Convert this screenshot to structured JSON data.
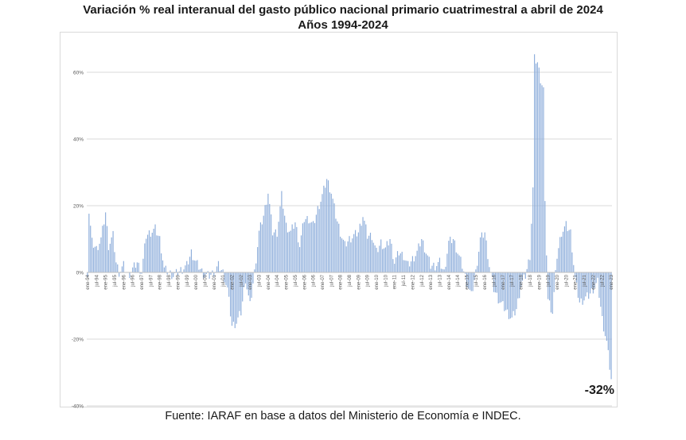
{
  "title": "Variación %  real interanual del gasto público nacional primario cuatrimestral a abril de 2024",
  "subtitle": "Años 1994-2024",
  "source": "Fuente: IARAF en base a datos del Ministerio de Economía e INDEC.",
  "annotation": "-32%",
  "chart_data": {
    "type": "bar",
    "title": "Variación %  real interanual del gasto público nacional primario cuatrimestral a abril de 2024",
    "subtitle": "Años 1994-2024",
    "xlabel": "",
    "ylabel": "",
    "ylim": [
      -40,
      70
    ],
    "yticks": [
      -40,
      -20,
      0,
      20,
      40,
      60
    ],
    "ytick_labels": [
      "-40%",
      "-20%",
      "0%",
      "20%",
      "40%",
      "60%"
    ],
    "grid": true,
    "bar_color": "#8eaedb",
    "annotation": "-32%",
    "xtick_labels": [
      "ene-94",
      "jul-94",
      "ene-95",
      "jul-95",
      "ene-96",
      "jul-96",
      "ene-97",
      "jul-97",
      "ene-98",
      "jul-98",
      "ene-99",
      "jul-99",
      "ene-00",
      "jul-00",
      "ene-01",
      "jul-01",
      "ene-02",
      "jul-02",
      "ene-03",
      "jul-03",
      "ene-04",
      "jul-04",
      "ene-05",
      "jul-05",
      "ene-06",
      "jul-06",
      "ene-07",
      "jul-07",
      "ene-08",
      "jul-08",
      "ene-09",
      "jul-09",
      "ene-10",
      "jul-10",
      "ene-11",
      "jul-11",
      "ene-12",
      "jul-12",
      "ene-13",
      "jul-13",
      "ene-14",
      "jul-14",
      "ene-15",
      "jul-15",
      "ene-16",
      "jul-16",
      "ene-17",
      "jul-17",
      "ene-18",
      "jul-18",
      "ene-19",
      "jul-19",
      "ene-20",
      "jul-20",
      "ene-21",
      "jul-21",
      "ene-22",
      "jul-22",
      "ene-23",
      "jul-23",
      "ene-24"
    ],
    "anchors": [
      [
        0,
        0
      ],
      [
        1,
        18
      ],
      [
        3,
        9
      ],
      [
        6,
        7
      ],
      [
        9,
        10
      ],
      [
        12,
        18
      ],
      [
        14,
        8
      ],
      [
        17,
        11
      ],
      [
        19,
        3
      ],
      [
        21,
        0
      ],
      [
        24,
        2
      ],
      [
        27,
        -1
      ],
      [
        30,
        1
      ],
      [
        33,
        3
      ],
      [
        36,
        0
      ],
      [
        39,
        11
      ],
      [
        42,
        12
      ],
      [
        45,
        13
      ],
      [
        48,
        10
      ],
      [
        51,
        1
      ],
      [
        54,
        0
      ],
      [
        57,
        -1
      ],
      [
        60,
        0
      ],
      [
        63,
        1
      ],
      [
        66,
        2
      ],
      [
        69,
        6
      ],
      [
        72,
        3
      ],
      [
        75,
        1
      ],
      [
        78,
        -1
      ],
      [
        81,
        -1
      ],
      [
        84,
        0
      ],
      [
        87,
        2
      ],
      [
        90,
        0
      ],
      [
        93,
        -5
      ],
      [
        96,
        -16
      ],
      [
        99,
        -15
      ],
      [
        102,
        -12
      ],
      [
        105,
        -2
      ],
      [
        108,
        -10
      ],
      [
        111,
        0
      ],
      [
        114,
        12
      ],
      [
        117,
        17
      ],
      [
        120,
        24
      ],
      [
        123,
        12
      ],
      [
        126,
        12
      ],
      [
        129,
        23
      ],
      [
        132,
        14
      ],
      [
        135,
        12
      ],
      [
        138,
        15
      ],
      [
        141,
        8
      ],
      [
        144,
        16
      ],
      [
        147,
        16
      ],
      [
        150,
        14
      ],
      [
        153,
        19
      ],
      [
        156,
        23
      ],
      [
        159,
        28
      ],
      [
        162,
        24
      ],
      [
        165,
        17
      ],
      [
        168,
        12
      ],
      [
        171,
        8
      ],
      [
        174,
        10
      ],
      [
        177,
        11
      ],
      [
        180,
        12
      ],
      [
        183,
        17
      ],
      [
        186,
        11
      ],
      [
        189,
        11
      ],
      [
        192,
        6
      ],
      [
        195,
        9
      ],
      [
        198,
        7
      ],
      [
        201,
        10
      ],
      [
        204,
        3
      ],
      [
        207,
        6
      ],
      [
        210,
        5
      ],
      [
        213,
        2
      ],
      [
        216,
        4
      ],
      [
        219,
        6
      ],
      [
        222,
        10
      ],
      [
        225,
        6
      ],
      [
        228,
        2
      ],
      [
        231,
        2
      ],
      [
        234,
        3
      ],
      [
        237,
        0
      ],
      [
        240,
        9
      ],
      [
        243,
        10
      ],
      [
        246,
        6
      ],
      [
        249,
        2
      ],
      [
        252,
        -3
      ],
      [
        255,
        -7
      ],
      [
        258,
        0
      ],
      [
        261,
        10
      ],
      [
        264,
        12
      ],
      [
        267,
        2
      ],
      [
        270,
        -5
      ],
      [
        273,
        -8
      ],
      [
        276,
        -10
      ],
      [
        279,
        -12
      ],
      [
        282,
        -14
      ],
      [
        285,
        -11
      ],
      [
        288,
        -4
      ],
      [
        291,
        -1
      ],
      [
        294,
        5
      ],
      [
        296,
        25
      ],
      [
        297,
        64
      ],
      [
        299,
        63
      ],
      [
        301,
        58
      ],
      [
        303,
        55
      ],
      [
        304,
        20
      ],
      [
        306,
        -8
      ],
      [
        309,
        -12
      ],
      [
        312,
        5
      ],
      [
        315,
        12
      ],
      [
        318,
        14
      ],
      [
        321,
        12
      ],
      [
        324,
        -2
      ],
      [
        327,
        -9
      ],
      [
        330,
        -8
      ],
      [
        333,
        -7
      ],
      [
        336,
        -5
      ],
      [
        339,
        -3
      ],
      [
        342,
        -14
      ],
      [
        345,
        -21
      ],
      [
        348,
        -32
      ]
    ]
  }
}
